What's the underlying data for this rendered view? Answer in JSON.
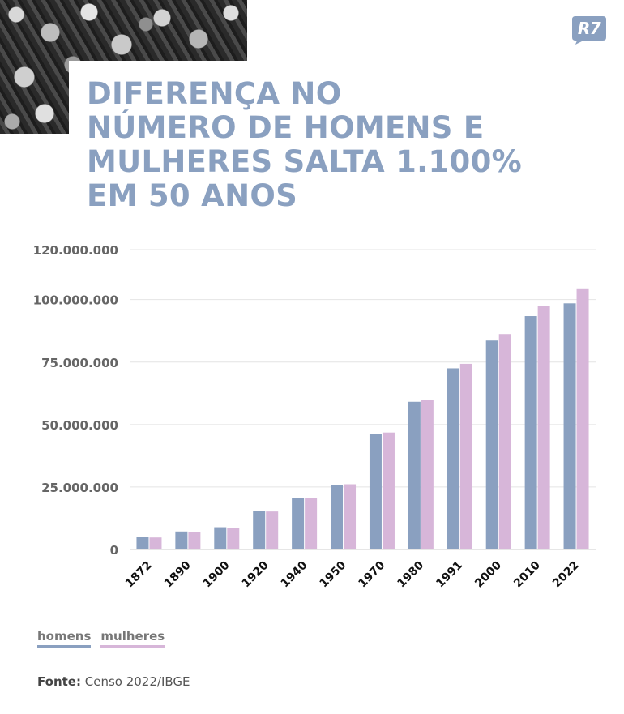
{
  "brand": {
    "logo_text": "R7"
  },
  "title": "DIFERENÇA NO\nNÚMERO DE HOMENS E\nMULHERES SALTA 1.100%\nEM 50 ANOS",
  "colors": {
    "homens": "#8aa0c0",
    "mulheres": "#d7b6d9",
    "title": "#8aa0c0",
    "logo": "#8aa0c0"
  },
  "legend": {
    "homens": "homens",
    "mulheres": "mulheres"
  },
  "source": {
    "label": "Fonte:",
    "text": "Censo 2022/IBGE"
  },
  "chart_data": {
    "type": "bar",
    "categories": [
      "1872",
      "1890",
      "1900",
      "1920",
      "1940",
      "1950",
      "1970",
      "1980",
      "1991",
      "2000",
      "2010",
      "2022"
    ],
    "series": [
      {
        "name": "homens",
        "values": [
          5100000,
          7200000,
          8900000,
          15400000,
          20600000,
          25900000,
          46300000,
          59100000,
          72500000,
          83600000,
          93400000,
          98500000
        ]
      },
      {
        "name": "mulheres",
        "values": [
          4800000,
          7100000,
          8500000,
          15200000,
          20600000,
          26100000,
          46800000,
          59900000,
          74300000,
          86200000,
          97300000,
          104500000
        ]
      }
    ],
    "ylim": [
      0,
      120000000
    ],
    "yticks": [
      0,
      25000000,
      50000000,
      75000000,
      100000000,
      120000000
    ],
    "ytick_labels": [
      "0",
      "25.000.000",
      "50.000.000",
      "75.000.000",
      "100.000.000",
      "120.000.000"
    ],
    "grid": true,
    "legend_position": "bottom-left"
  }
}
